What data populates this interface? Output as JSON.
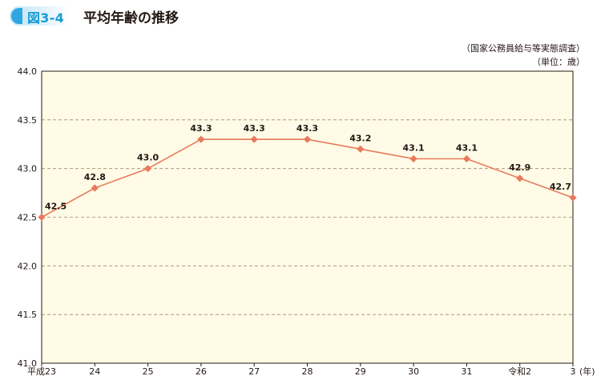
{
  "figure": {
    "number": "図3-4",
    "title": "平均年齢の推移",
    "source": "（国家公務員給与等実態調査）",
    "unit": "（単位：歳）"
  },
  "colors": {
    "line": "#e87a5d",
    "marker": "#e87a5d",
    "plot_background": "#fffbe6",
    "grid": "#a08a6a",
    "axis": "#231815",
    "badge_accent": "#1a9bd7"
  },
  "chart_data": {
    "type": "line",
    "title": "平均年齢の推移",
    "categories": [
      "平成23",
      "24",
      "25",
      "26",
      "27",
      "28",
      "29",
      "30",
      "31",
      "令和2",
      "3"
    ],
    "x_unit_label": "(年)",
    "series": [
      {
        "values": [
          42.5,
          42.8,
          43.0,
          43.3,
          43.3,
          43.3,
          43.2,
          43.1,
          43.1,
          42.9,
          42.7
        ],
        "labels": [
          "42.5",
          "42.8",
          "43.0",
          "43.3",
          "43.3",
          "43.3",
          "43.2",
          "43.1",
          "43.1",
          "42.9",
          "42.7"
        ]
      }
    ],
    "ylim": [
      41.0,
      44.0
    ],
    "y_ticks": [
      41.0,
      41.5,
      42.0,
      42.5,
      43.0,
      43.5,
      44.0
    ],
    "y_tick_labels": [
      "41.0",
      "41.5",
      "42.0",
      "42.5",
      "43.0",
      "43.5",
      "44.0"
    ],
    "grid": "horizontal dashed",
    "marker": "diamond",
    "xlabel": "",
    "ylabel": ""
  }
}
